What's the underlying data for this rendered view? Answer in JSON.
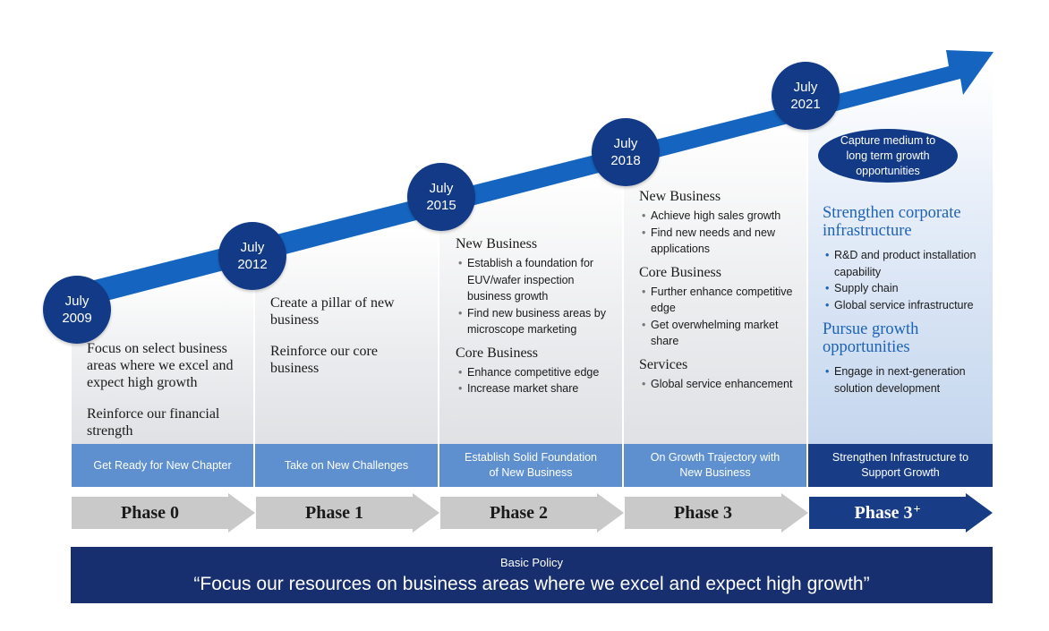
{
  "colors": {
    "arrow": "#1565c0",
    "milestone": "#123a87",
    "band_light": "#5e90d0",
    "band_dark": "#183d86",
    "chevron_grey": "#c9c9c9",
    "chevron_active": "#183d86",
    "policy_bg": "#172f6f",
    "accent_title": "#1d63b5"
  },
  "milestones": [
    {
      "month": "July",
      "year": "2009"
    },
    {
      "month": "July",
      "year": "2012"
    },
    {
      "month": "July",
      "year": "2015"
    },
    {
      "month": "July",
      "year": "2018"
    },
    {
      "month": "July",
      "year": "2021"
    }
  ],
  "phase0": {
    "lines": [
      "Focus on select business areas where we excel and expect high growth",
      "Reinforce our financial strength"
    ]
  },
  "phase1": {
    "lines": [
      "Create a pillar of new business",
      "Reinforce our core business"
    ]
  },
  "phase2": {
    "new_business_title": "New Business",
    "new_business_items": [
      "Establish a foundation for EUV/wafer inspection business growth",
      "Find new business areas by microscope marketing"
    ],
    "core_business_title": "Core Business",
    "core_business_items": [
      "Enhance competitive edge",
      "Increase market share"
    ]
  },
  "phase3": {
    "new_business_title": "New Business",
    "new_business_items": [
      "Achieve high sales growth",
      "Find new needs and new applications"
    ],
    "core_business_title": "Core Business",
    "core_business_items": [
      "Further enhance competitive edge",
      "Get overwhelming market share"
    ],
    "services_title": "Services",
    "services_items": [
      "Global service enhancement"
    ]
  },
  "phase3plus": {
    "oval": "Capture medium to long term growth opportunities",
    "infra_title": "Strengthen corporate infrastructure",
    "infra_items": [
      "R&D and product installation capability",
      "Supply chain",
      "Global service infrastructure"
    ],
    "growth_title": "Pursue growth opportunities",
    "growth_items": [
      "Engage in next-generation solution development"
    ]
  },
  "stages": [
    "Get Ready for New Chapter",
    "Take on New Challenges",
    "Establish Solid Foundation of New Business",
    "On Growth Trajectory with New Business",
    "Strengthen Infrastructure to Support Growth"
  ],
  "phases": [
    {
      "label": "Phase 0",
      "sup": ""
    },
    {
      "label": "Phase 1",
      "sup": ""
    },
    {
      "label": "Phase 2",
      "sup": ""
    },
    {
      "label": "Phase 3",
      "sup": ""
    },
    {
      "label": "Phase 3",
      "sup": "+"
    }
  ],
  "policy": {
    "title": "Basic Policy",
    "quote": "“Focus our resources on business areas where we excel and expect high growth”"
  }
}
